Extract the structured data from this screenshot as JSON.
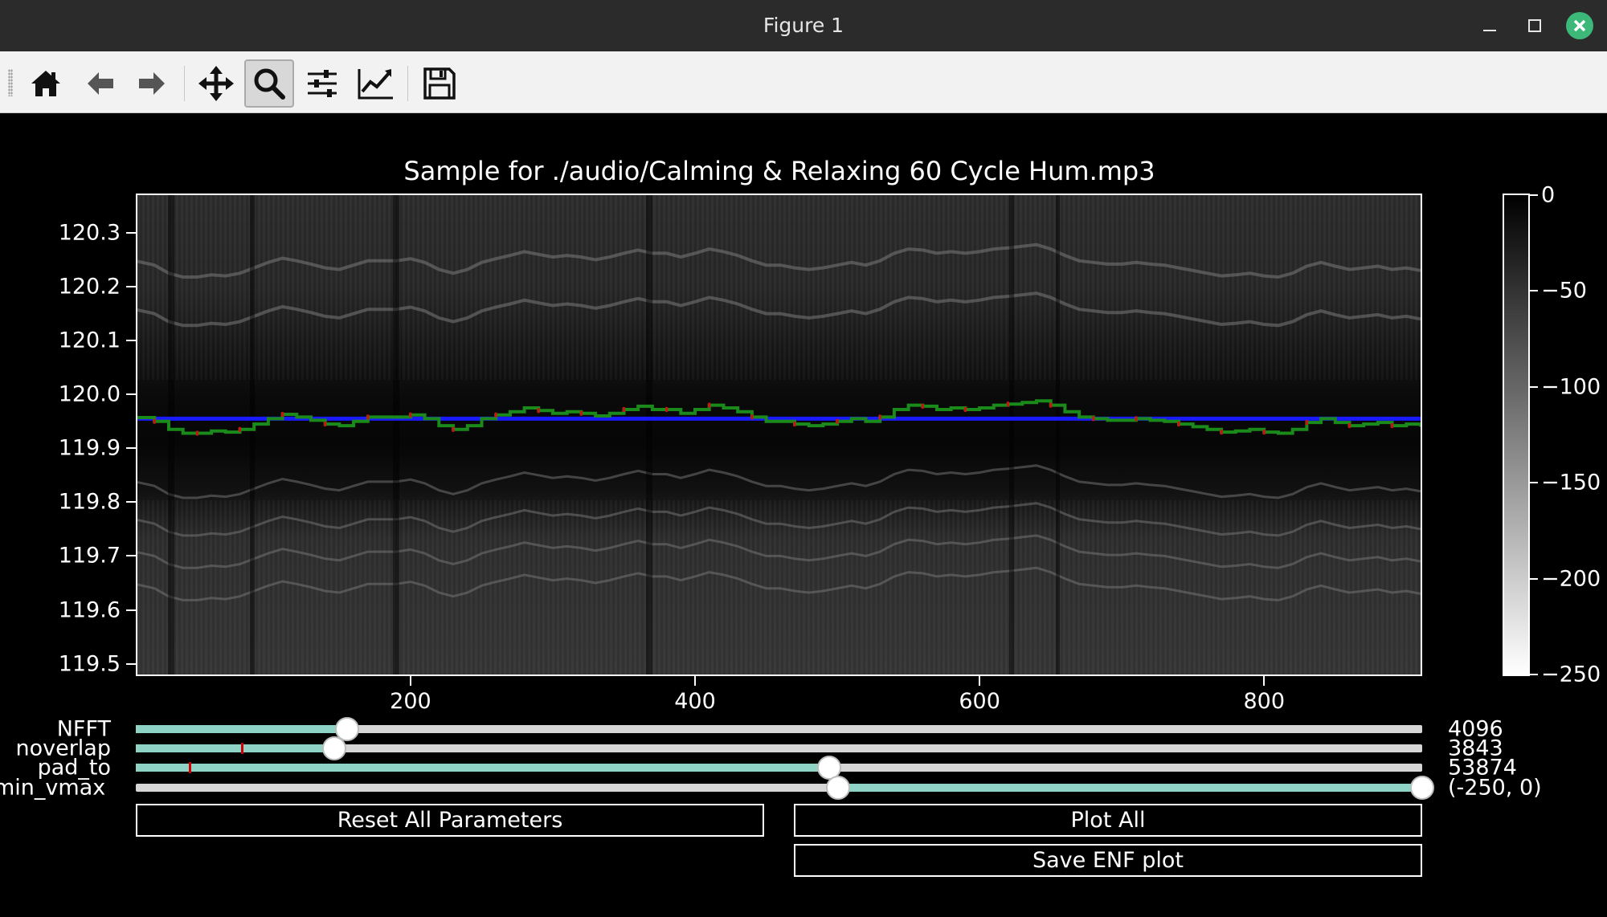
{
  "window": {
    "title": "Figure 1",
    "close_color": "#3cb878"
  },
  "toolbar": {
    "tools": [
      {
        "name": "home-icon",
        "active": false
      },
      {
        "name": "back-arrow-icon",
        "active": false
      },
      {
        "name": "forward-arrow-icon",
        "active": false
      },
      {
        "name": "pan-move-icon",
        "active": false
      },
      {
        "name": "zoom-magnifier-icon",
        "active": true
      },
      {
        "name": "subplots-config-icon",
        "active": false
      },
      {
        "name": "edit-axes-icon",
        "active": false
      },
      {
        "name": "save-floppy-icon",
        "active": false
      }
    ]
  },
  "figure": {
    "title": "Sample for ./audio/Calming & Relaxing 60 Cycle Hum.mp3",
    "y_ticks": [
      "120.3",
      "120.2",
      "120.1",
      "120.0",
      "119.9",
      "119.8",
      "119.7",
      "119.6",
      "119.5"
    ],
    "x_ticks": [
      "200",
      "400",
      "600",
      "800"
    ],
    "colorbar_ticks": [
      "0",
      "−50",
      "−100",
      "−150",
      "−200",
      "−250"
    ]
  },
  "chart_data": {
    "type": "heatmap",
    "title": "Sample for ./audio/Calming & Relaxing 60 Cycle Hum.mp3",
    "xlim": [
      8,
      910
    ],
    "ylim": [
      119.48,
      120.37
    ],
    "colorbar_range": [
      -250,
      0
    ],
    "colormap": "gray_r",
    "series": [
      {
        "color": "#1a1aff",
        "x": [
          8,
          910
        ],
        "y": [
          119.955,
          119.955
        ]
      },
      {
        "color": "#1a8a1a",
        "x": [
          8,
          20,
          30,
          40,
          50,
          60,
          70,
          80,
          90,
          100,
          110,
          120,
          130,
          140,
          150,
          160,
          170,
          180,
          190,
          200,
          210,
          220,
          230,
          240,
          250,
          260,
          270,
          280,
          290,
          300,
          310,
          320,
          330,
          340,
          350,
          360,
          370,
          380,
          390,
          400,
          410,
          420,
          430,
          440,
          450,
          460,
          470,
          480,
          490,
          500,
          510,
          520,
          530,
          540,
          550,
          560,
          570,
          580,
          590,
          600,
          610,
          620,
          630,
          640,
          650,
          660,
          670,
          680,
          690,
          700,
          710,
          720,
          730,
          740,
          750,
          760,
          770,
          780,
          790,
          800,
          810,
          820,
          830,
          840,
          850,
          860,
          870,
          880,
          890,
          900,
          910
        ],
        "y": [
          119.957,
          119.95,
          119.935,
          119.928,
          119.928,
          119.932,
          119.93,
          119.935,
          119.945,
          119.955,
          119.963,
          119.958,
          119.952,
          119.945,
          119.942,
          119.95,
          119.958,
          119.958,
          119.958,
          119.962,
          119.955,
          119.942,
          119.935,
          119.942,
          119.955,
          119.962,
          119.968,
          119.975,
          119.97,
          119.965,
          119.968,
          119.965,
          119.96,
          119.965,
          119.972,
          119.978,
          119.972,
          119.972,
          119.965,
          119.972,
          119.98,
          119.975,
          119.968,
          119.958,
          119.95,
          119.95,
          119.945,
          119.942,
          119.945,
          119.95,
          119.955,
          119.95,
          119.958,
          119.972,
          119.98,
          119.978,
          119.972,
          119.975,
          119.972,
          119.975,
          119.98,
          119.982,
          119.985,
          119.988,
          119.98,
          119.968,
          119.958,
          119.955,
          119.952,
          119.952,
          119.955,
          119.952,
          119.95,
          119.945,
          119.94,
          119.935,
          119.93,
          119.932,
          119.935,
          119.93,
          119.928,
          119.935,
          119.948,
          119.955,
          119.948,
          119.942,
          119.945,
          119.948,
          119.942,
          119.945,
          119.94
        ]
      }
    ]
  },
  "sliders": [
    {
      "label": "NFFT",
      "value_text": "4096",
      "fill": [
        0.0,
        0.164
      ],
      "knob": 0.164,
      "marker": null
    },
    {
      "label": "noverlap",
      "value_text": "3843",
      "fill": [
        0.0,
        0.154
      ],
      "knob": 0.154,
      "marker": 0.082
    },
    {
      "label": "pad_to",
      "value_text": "53874",
      "fill": [
        0.0,
        0.539
      ],
      "knob": 0.539,
      "marker": 0.041
    },
    {
      "label": "min_vmax",
      "value_text": "(-250, 0)",
      "fill": [
        0.546,
        1.0
      ],
      "knob": [
        0.546,
        1.0
      ],
      "marker": null
    }
  ],
  "buttons": {
    "reset": "Reset All Parameters",
    "plot_all": "Plot All",
    "save_enf": "Save ENF plot"
  }
}
